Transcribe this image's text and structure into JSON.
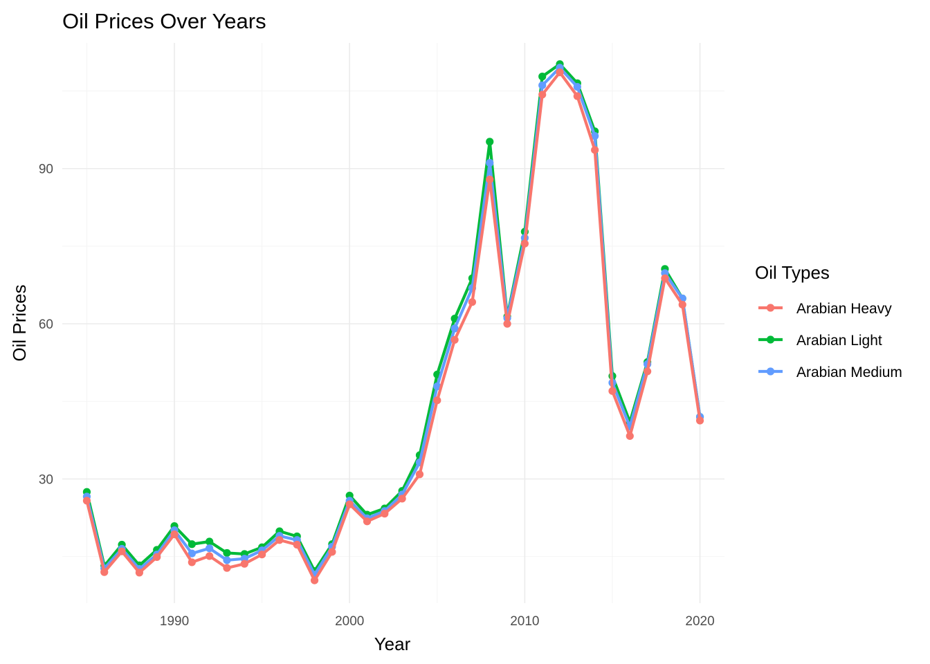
{
  "chart_data": {
    "type": "line",
    "title": "Oil Prices Over Years",
    "xlabel": "Year",
    "ylabel": "Oil Prices",
    "legend_title": "Oil Types",
    "legend_position": "right",
    "grid": true,
    "xlim": [
      1983.6,
      2021.4
    ],
    "ylim": [
      6.0,
      114.3
    ],
    "x_ticks": [
      1990,
      2000,
      2010,
      2020
    ],
    "y_ticks": [
      30,
      60,
      90
    ],
    "x_minor": [
      1985,
      1995,
      2005,
      2015
    ],
    "y_minor": [
      15,
      45,
      75,
      105
    ],
    "x": [
      1985,
      1986,
      1987,
      1988,
      1989,
      1990,
      1991,
      1992,
      1993,
      1994,
      1995,
      1996,
      1997,
      1998,
      1999,
      2000,
      2001,
      2002,
      2003,
      2004,
      2005,
      2006,
      2007,
      2008,
      2009,
      2010,
      2011,
      2012,
      2013,
      2014,
      2015,
      2016,
      2017,
      2018,
      2019,
      2020
    ],
    "series": [
      {
        "name": "Arabian Light",
        "color": "#00ba38",
        "values": [
          27.5,
          13.2,
          17.3,
          13.3,
          16.3,
          20.9,
          17.4,
          17.9,
          15.7,
          15.5,
          16.8,
          19.9,
          18.9,
          12.2,
          17.4,
          26.8,
          23.1,
          24.3,
          27.7,
          34.6,
          50.2,
          61.0,
          68.8,
          95.2,
          61.4,
          77.8,
          107.8,
          110.2,
          106.5,
          97.2,
          49.9,
          41.0,
          52.6,
          70.6,
          64.9,
          42.0
        ]
      },
      {
        "name": "Arabian Medium",
        "color": "#619cff",
        "values": [
          26.6,
          12.7,
          16.5,
          12.6,
          15.4,
          20.1,
          15.6,
          16.6,
          14.3,
          14.6,
          16.2,
          19.0,
          18.2,
          11.5,
          16.9,
          25.8,
          22.4,
          23.8,
          27.0,
          33.2,
          47.9,
          59.1,
          66.9,
          91.1,
          61.1,
          76.6,
          106.1,
          109.5,
          105.8,
          96.3,
          48.6,
          40.1,
          52.2,
          69.8,
          64.9,
          42.0
        ]
      },
      {
        "name": "Arabian Heavy",
        "color": "#f8766d",
        "values": [
          25.8,
          12.0,
          16.0,
          11.9,
          14.9,
          19.3,
          13.9,
          15.1,
          12.8,
          13.6,
          15.4,
          18.2,
          17.3,
          10.4,
          15.9,
          25.1,
          21.8,
          23.3,
          26.2,
          30.9,
          45.2,
          56.9,
          64.2,
          87.9,
          60.0,
          75.5,
          104.3,
          108.6,
          104.0,
          93.6,
          47.0,
          38.3,
          50.8,
          68.8,
          63.7,
          41.3
        ]
      }
    ],
    "legend_order": [
      "Arabian Heavy",
      "Arabian Light",
      "Arabian Medium"
    ]
  }
}
